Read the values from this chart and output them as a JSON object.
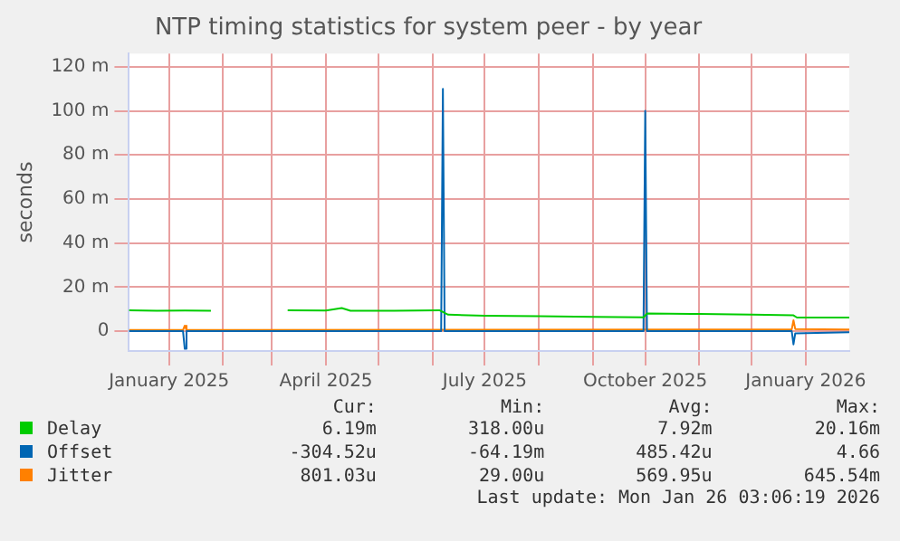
{
  "chart_data": {
    "type": "line",
    "title": "NTP timing statistics for system peer - by year",
    "ylabel": "seconds",
    "xlim": [
      "2024-12-09",
      "2026-01-26"
    ],
    "xticks": [
      {
        "value": "2025-01-01",
        "label": "January 2025"
      },
      {
        "value": "2025-02-01",
        "label": null
      },
      {
        "value": "2025-03-01",
        "label": null
      },
      {
        "value": "2025-04-01",
        "label": "April 2025"
      },
      {
        "value": "2025-05-01",
        "label": null
      },
      {
        "value": "2025-06-01",
        "label": null
      },
      {
        "value": "2025-07-01",
        "label": "July 2025"
      },
      {
        "value": "2025-08-01",
        "label": null
      },
      {
        "value": "2025-09-01",
        "label": null
      },
      {
        "value": "2025-10-01",
        "label": "October 2025"
      },
      {
        "value": "2025-11-01",
        "label": null
      },
      {
        "value": "2025-12-01",
        "label": null
      },
      {
        "value": "2026-01-01",
        "label": "January 2026"
      }
    ],
    "ylim": [
      -9,
      126
    ],
    "yticks": [
      {
        "value": 0,
        "label": "0"
      },
      {
        "value": 20,
        "label": "20 m"
      },
      {
        "value": 40,
        "label": "40 m"
      },
      {
        "value": 60,
        "label": "60 m"
      },
      {
        "value": 80,
        "label": "80 m"
      },
      {
        "value": 100,
        "label": "100 m"
      },
      {
        "value": 120,
        "label": "120 m"
      }
    ],
    "grid": true,
    "legend": "bottom",
    "marker": "none",
    "line_style": "solid",
    "series": [
      {
        "name": "Delay",
        "color": "#00cc00",
        "x": [
          "2024-12-09",
          "2024-12-25",
          "2025-01-10",
          "2025-01-25",
          "2025-01-26",
          "2025-03-10",
          "2025-04-01",
          "2025-04-10",
          "2025-04-15",
          "2025-05-10",
          "2025-06-05",
          "2025-06-10",
          "2025-07-01",
          "2025-08-01",
          "2025-09-01",
          "2025-09-30",
          "2025-10-02",
          "2025-11-01",
          "2025-12-01",
          "2025-12-25",
          "2025-12-27",
          "2026-01-26"
        ],
        "values": [
          9.5,
          9.3,
          9.4,
          9.3,
          null,
          9.5,
          9.4,
          10.5,
          9.3,
          9.3,
          9.5,
          7.5,
          7.0,
          6.8,
          6.5,
          6.3,
          8.0,
          7.8,
          7.5,
          7.2,
          6.2,
          6.2
        ]
      },
      {
        "name": "Offset",
        "color": "#0066b3",
        "x": [
          "2024-12-09",
          "2025-01-09",
          "2025-01-10",
          "2025-01-11",
          "2025-06-06",
          "2025-06-07",
          "2025-06-08",
          "2025-09-30",
          "2025-10-01",
          "2025-10-02",
          "2025-12-24",
          "2025-12-25",
          "2025-12-26",
          "2026-01-26"
        ],
        "values": [
          0,
          0,
          -8,
          0,
          0,
          110,
          0,
          0,
          100,
          0,
          0,
          -6,
          -1,
          -0.5
        ]
      },
      {
        "name": "Jitter",
        "color": "#ff8000",
        "x": [
          "2024-12-09",
          "2025-01-09",
          "2025-01-10",
          "2025-01-11",
          "2025-12-24",
          "2025-12-25",
          "2025-12-26",
          "2026-01-26"
        ],
        "values": [
          0.5,
          0.5,
          2.5,
          0.5,
          0.8,
          5,
          1,
          0.8
        ]
      }
    ],
    "annotations": [
      "Cur:",
      "Min:",
      "Avg:",
      "Max:",
      "6.19m",
      "318.00u",
      "7.92m",
      "20.16m",
      "-304.52u",
      "-64.19m",
      "485.42u",
      "4.66",
      "801.03u",
      "29.00u",
      "569.95u",
      "645.54m",
      "Last update: Mon Jan 26 03:06:19 2026"
    ]
  }
}
